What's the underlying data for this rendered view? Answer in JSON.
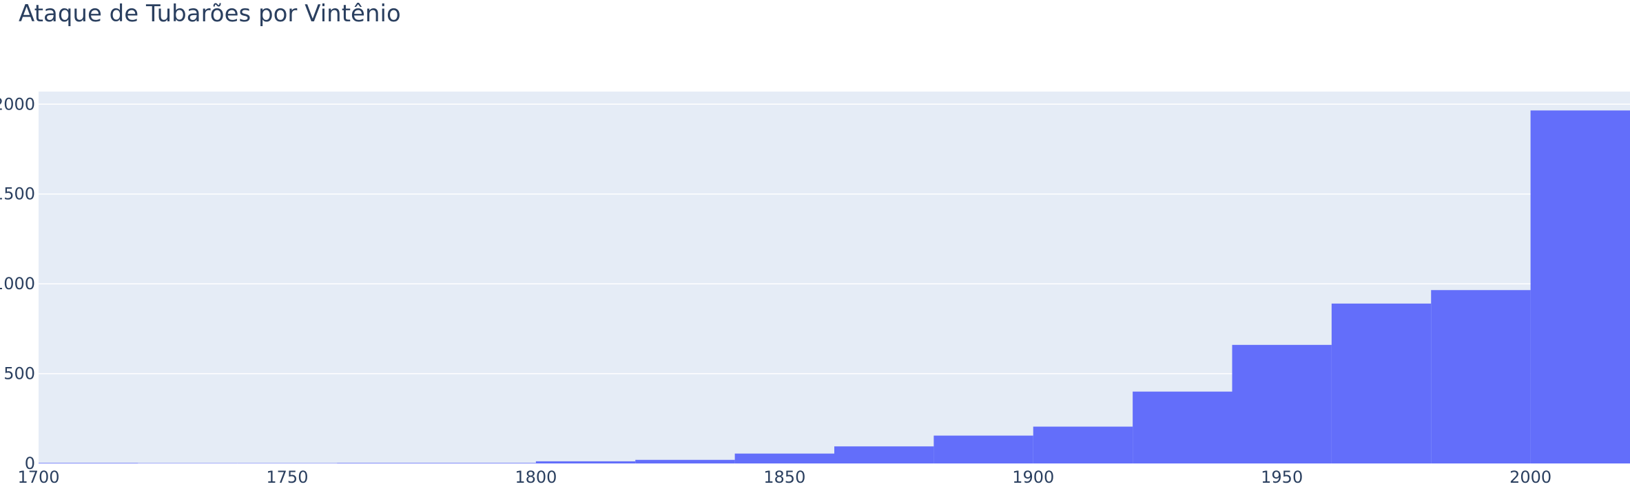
{
  "chart_data": {
    "type": "bar",
    "title": "Ataque de Tubarões por Vintênio",
    "xlabel": "",
    "ylabel": "",
    "x_bin_starts": [
      1700,
      1720,
      1740,
      1760,
      1780,
      1800,
      1820,
      1840,
      1860,
      1880,
      1900,
      1920,
      1940,
      1960,
      1980,
      2000
    ],
    "bin_width": 20,
    "values": [
      3,
      2,
      2,
      3,
      3,
      12,
      20,
      55,
      95,
      155,
      205,
      400,
      660,
      890,
      965,
      1965
    ],
    "xlim": [
      1700,
      2020
    ],
    "ylim": [
      0,
      2070
    ],
    "x_ticks": [
      1700,
      1750,
      1800,
      1850,
      1900,
      1950,
      2000
    ],
    "y_ticks": [
      0,
      500,
      1000,
      1500,
      2000
    ],
    "grid": true,
    "colors": {
      "bar": "#636efa",
      "plot_bg": "#e5ecf6",
      "grid": "#ffffff",
      "text": "#2a3f5f"
    }
  }
}
